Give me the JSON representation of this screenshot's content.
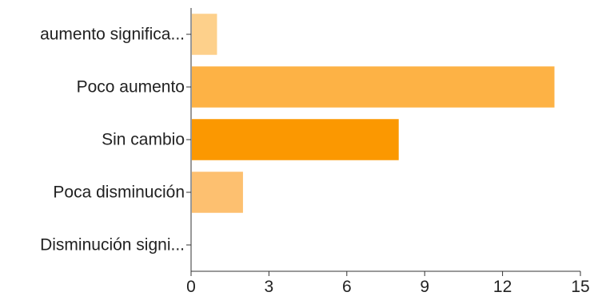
{
  "chart_data": {
    "type": "bar",
    "orientation": "horizontal",
    "categories": [
      "aumento significa...",
      "Poco aumento",
      "Sin cambio",
      "Poca disminución",
      "Disminución signi..."
    ],
    "values": [
      1,
      14,
      8,
      2,
      0
    ],
    "bar_colors": [
      "#fdd08b",
      "#fdb245",
      "#fb9801",
      "#fdc070",
      "#fde3b8"
    ],
    "xlim": [
      0,
      15
    ],
    "xticks": [
      "0",
      "3",
      "6",
      "9",
      "12",
      "15"
    ],
    "grid": false,
    "legend": "none",
    "title": "",
    "xlabel": "",
    "ylabel": ""
  }
}
